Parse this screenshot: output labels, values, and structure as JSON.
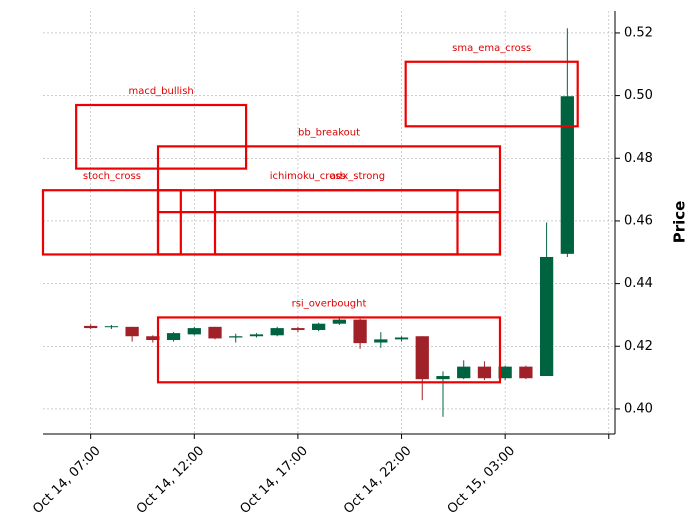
{
  "chart_data": {
    "type": "candlestick",
    "ylabel": "Price",
    "ylim": [
      0.392,
      0.527
    ],
    "y_ticks": [
      0.4,
      0.42,
      0.44,
      0.46,
      0.48,
      0.5,
      0.52
    ],
    "y_tick_labels": [
      "0.40",
      "0.42",
      "0.44",
      "0.46",
      "0.48",
      "0.50",
      "0.52"
    ],
    "x_ticks": [
      {
        "t": 2,
        "label": "Oct 14, 07:00"
      },
      {
        "t": 7,
        "label": "Oct 14, 12:00"
      },
      {
        "t": 12,
        "label": "Oct 14, 17:00"
      },
      {
        "t": 17,
        "label": "Oct 14, 22:00"
      },
      {
        "t": 22,
        "label": "Oct 15, 03:00"
      },
      {
        "t": 27,
        "label": ""
      }
    ],
    "x_range": [
      -0.3,
      27.3
    ],
    "grid": true,
    "up_color": "#006340",
    "down_color": "#a02128",
    "annotation_color": "#ee0000",
    "candles": [
      {
        "t": 2,
        "open": 0.4265,
        "high": 0.427,
        "low": 0.4255,
        "close": 0.4258
      },
      {
        "t": 3,
        "open": 0.4262,
        "high": 0.4268,
        "low": 0.4255,
        "close": 0.4264
      },
      {
        "t": 4,
        "open": 0.4262,
        "high": 0.4262,
        "low": 0.4215,
        "close": 0.4232
      },
      {
        "t": 5,
        "open": 0.4232,
        "high": 0.4235,
        "low": 0.4212,
        "close": 0.422
      },
      {
        "t": 6,
        "open": 0.422,
        "high": 0.4245,
        "low": 0.4215,
        "close": 0.4242
      },
      {
        "t": 7,
        "open": 0.4238,
        "high": 0.4262,
        "low": 0.4235,
        "close": 0.4258
      },
      {
        "t": 8,
        "open": 0.4262,
        "high": 0.4262,
        "low": 0.4222,
        "close": 0.4225
      },
      {
        "t": 9,
        "open": 0.4228,
        "high": 0.424,
        "low": 0.4212,
        "close": 0.4232
      },
      {
        "t": 10,
        "open": 0.4232,
        "high": 0.4242,
        "low": 0.4228,
        "close": 0.4238
      },
      {
        "t": 11,
        "open": 0.4235,
        "high": 0.4262,
        "low": 0.4232,
        "close": 0.4258
      },
      {
        "t": 12,
        "open": 0.4258,
        "high": 0.4262,
        "low": 0.4245,
        "close": 0.4252
      },
      {
        "t": 13,
        "open": 0.4252,
        "high": 0.4275,
        "low": 0.4248,
        "close": 0.4272
      },
      {
        "t": 14,
        "open": 0.4272,
        "high": 0.4292,
        "low": 0.4268,
        "close": 0.4285
      },
      {
        "t": 15,
        "open": 0.4285,
        "high": 0.4288,
        "low": 0.4192,
        "close": 0.421
      },
      {
        "t": 16,
        "open": 0.4212,
        "high": 0.4245,
        "low": 0.4195,
        "close": 0.4222
      },
      {
        "t": 17,
        "open": 0.4222,
        "high": 0.4232,
        "low": 0.4215,
        "close": 0.4228
      },
      {
        "t": 18,
        "open": 0.4232,
        "high": 0.4232,
        "low": 0.4028,
        "close": 0.4095
      },
      {
        "t": 19,
        "open": 0.4095,
        "high": 0.412,
        "low": 0.3975,
        "close": 0.4105
      },
      {
        "t": 20,
        "open": 0.4098,
        "high": 0.4155,
        "low": 0.4095,
        "close": 0.4135
      },
      {
        "t": 21,
        "open": 0.4135,
        "high": 0.4152,
        "low": 0.4092,
        "close": 0.4098
      },
      {
        "t": 22,
        "open": 0.4098,
        "high": 0.4138,
        "low": 0.4092,
        "close": 0.4135
      },
      {
        "t": 23,
        "open": 0.4135,
        "high": 0.4138,
        "low": 0.4095,
        "close": 0.4098
      },
      {
        "t": 24,
        "open": 0.4105,
        "high": 0.4595,
        "low": 0.4105,
        "close": 0.4485
      },
      {
        "t": 25,
        "open": 0.4495,
        "high": 0.5215,
        "low": 0.4485,
        "close": 0.4998
      }
    ],
    "annotations": [
      {
        "label": "macd_bullish",
        "t0": 1.3,
        "t1": 9.5,
        "y0": 0.4767,
        "y1": 0.497
      },
      {
        "label": "sma_ema_cross",
        "t0": 17.2,
        "t1": 25.5,
        "y0": 0.4902,
        "y1": 0.5108
      },
      {
        "label": "bb_breakout",
        "t0": 5.25,
        "t1": 21.75,
        "y0": 0.4493,
        "y1": 0.4838
      },
      {
        "label": "stoch_cross",
        "t0": -0.3,
        "t1": 6.35,
        "y0": 0.4493,
        "y1": 0.4698
      },
      {
        "label": "ichimoku_cross",
        "t0": 5.25,
        "t1": 19.7,
        "y0": 0.4493,
        "y1": 0.4698
      },
      {
        "label": "adx_strong",
        "t0": 8.0,
        "t1": 21.75,
        "y0": 0.4493,
        "y1": 0.4698
      },
      {
        "label": "",
        "t0": 5.25,
        "t1": 21.75,
        "y0": 0.4628,
        "y1": 0.4628
      },
      {
        "label": "rsi_overbought",
        "t0": 5.25,
        "t1": 21.75,
        "y0": 0.4085,
        "y1": 0.4292
      }
    ]
  }
}
